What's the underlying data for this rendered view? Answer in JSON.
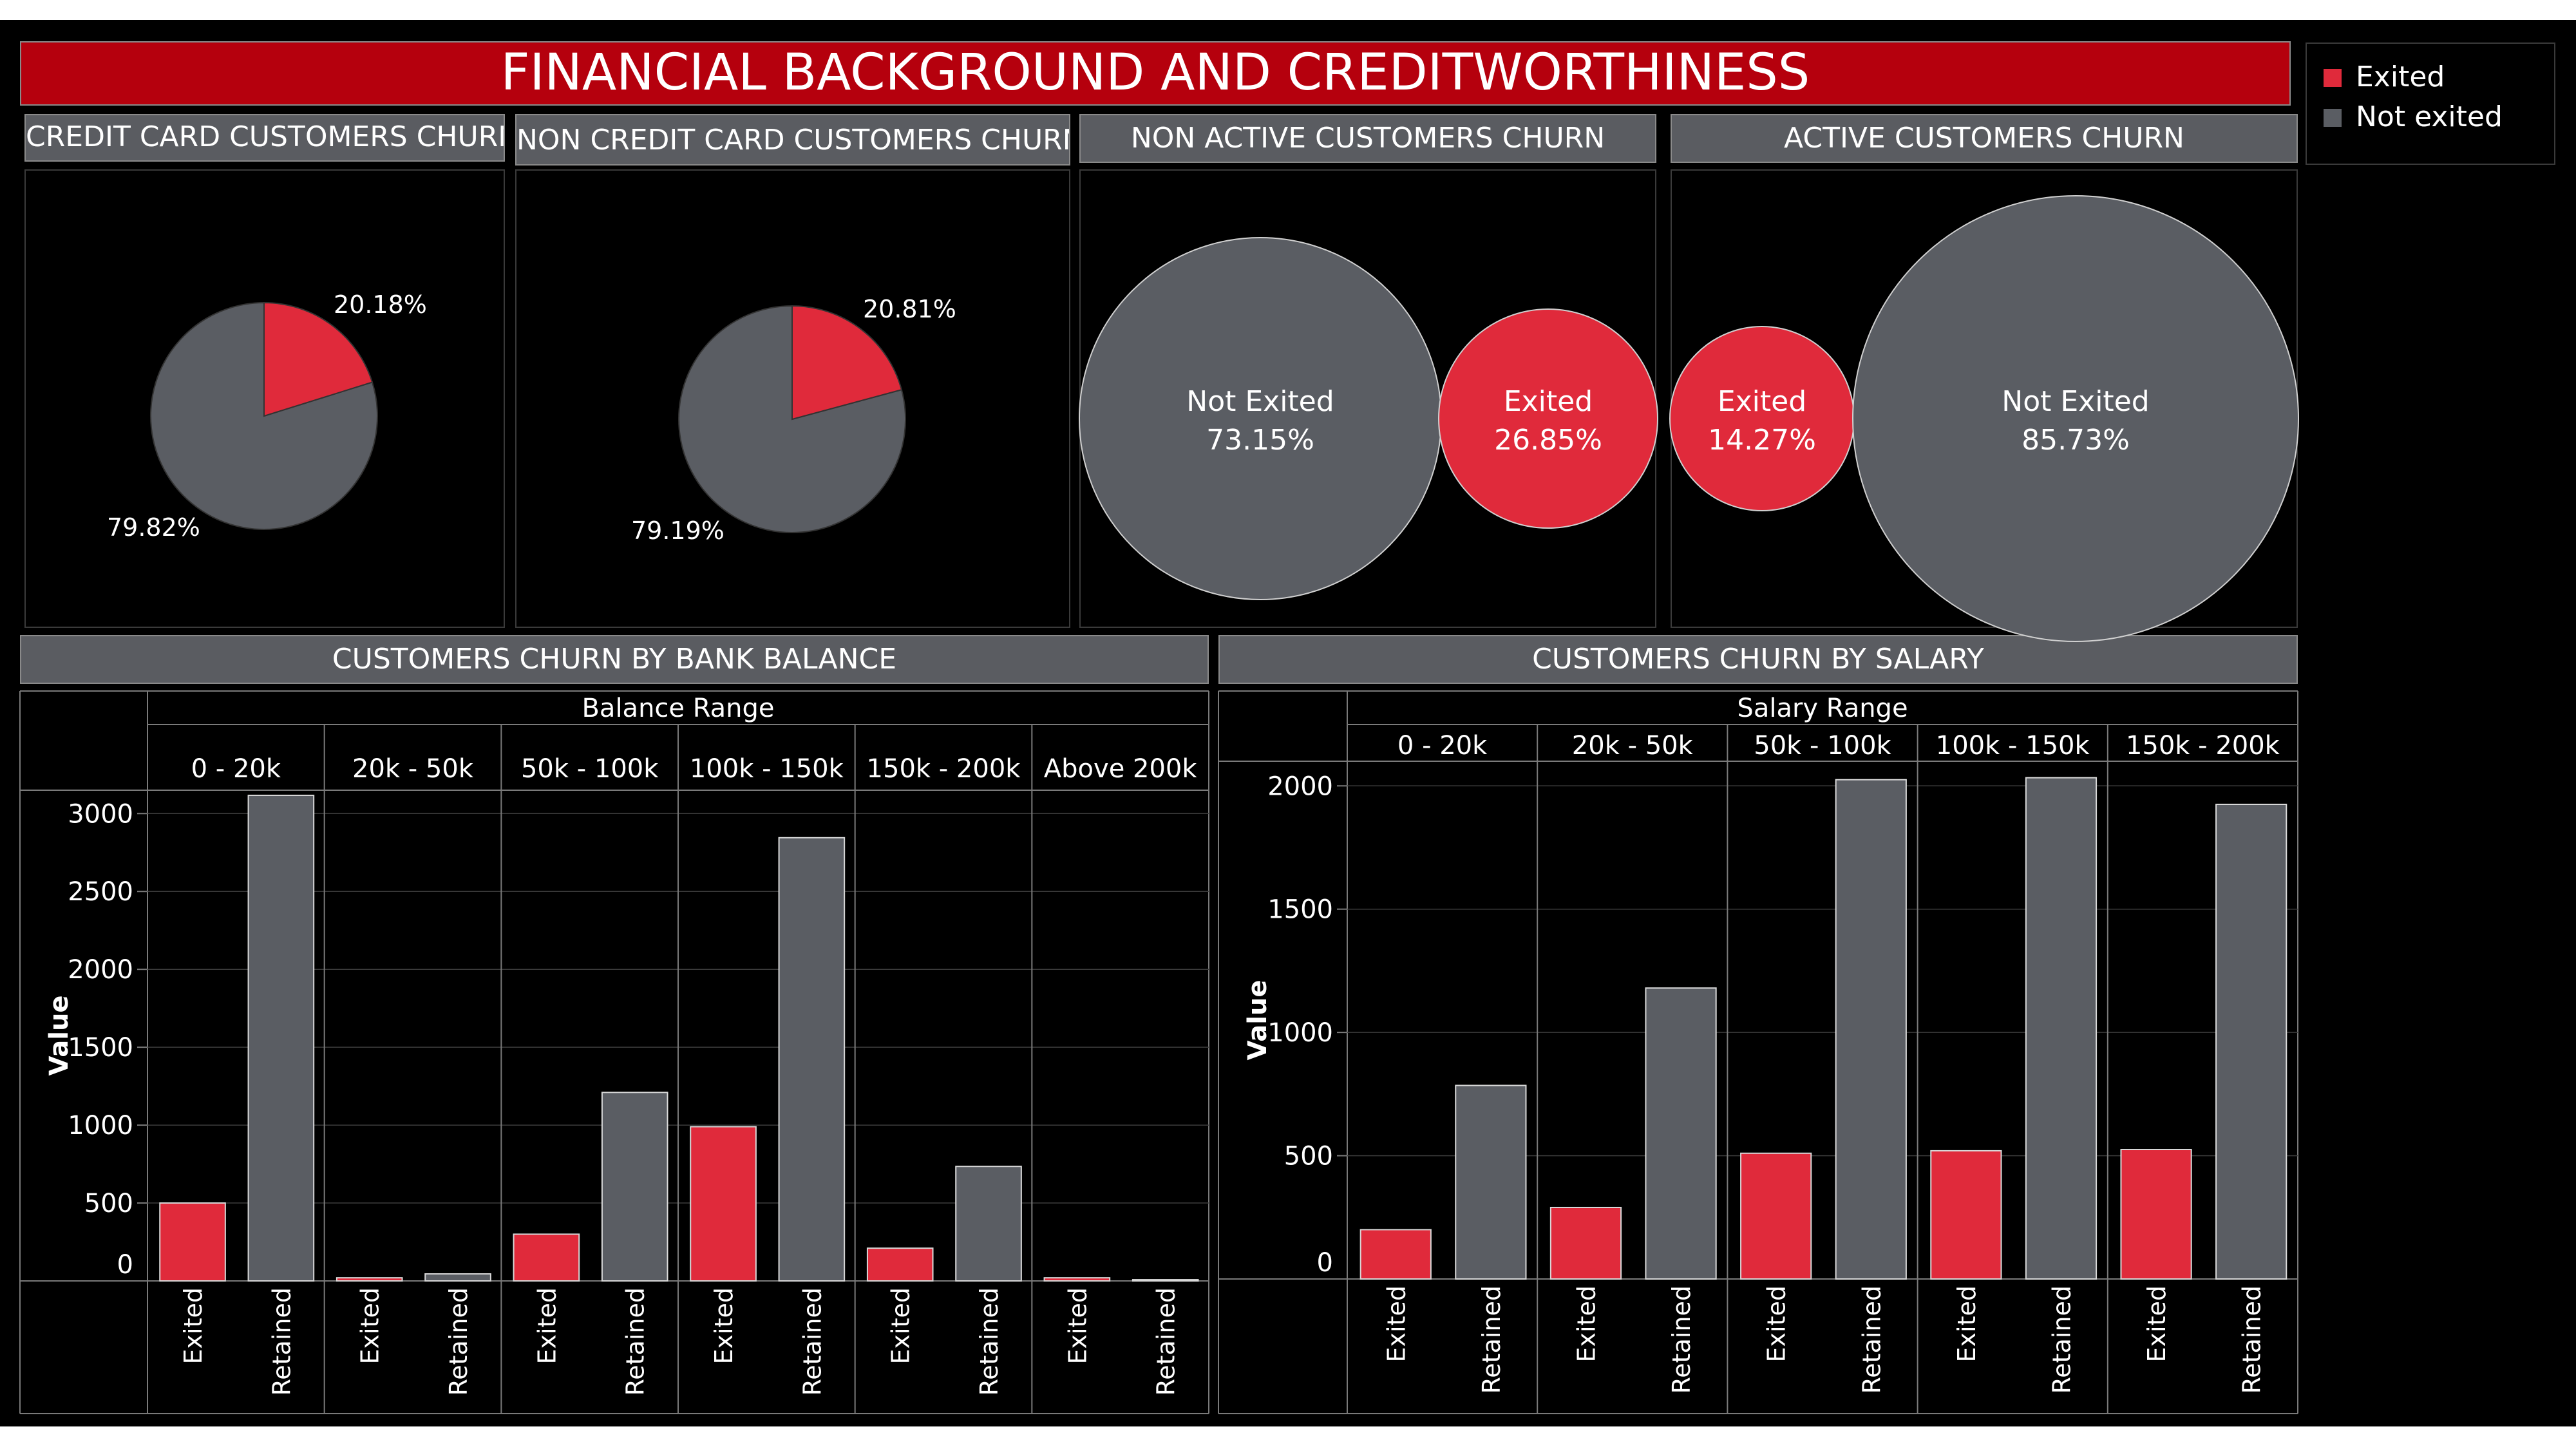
{
  "title": "FINANCIAL BACKGROUND AND CREDITWORTHINESS",
  "colors": {
    "exited": "#e02a3b",
    "retained": "#5a5d63",
    "background": "#000000",
    "header": "#b5000d",
    "title_bar": "#5a5c61"
  },
  "legend": [
    {
      "label": "Exited",
      "color": "#e02a3b"
    },
    {
      "label": "Not exited",
      "color": "#5a5d63"
    }
  ],
  "panels": {
    "credit_card": {
      "title": "CREDIT CARD CUSTOMERS CHURN"
    },
    "non_credit_card": {
      "title": "NON CREDIT CARD CUSTOMERS CHURN"
    },
    "non_active": {
      "title": "NON ACTIVE CUSTOMERS CHURN"
    },
    "active": {
      "title": "ACTIVE CUSTOMERS CHURN"
    },
    "balance": {
      "title": "CUSTOMERS CHURN BY BANK BALANCE"
    },
    "salary": {
      "title": "CUSTOMERS CHURN BY SALARY"
    }
  },
  "chart_data": [
    {
      "type": "pie",
      "title": "CREDIT CARD CUSTOMERS CHURN",
      "slices": [
        {
          "name": "Exited",
          "value": 20.18,
          "label": "20.18%"
        },
        {
          "name": "Not exited",
          "value": 79.82,
          "label": "79.82%"
        }
      ]
    },
    {
      "type": "pie",
      "title": "NON CREDIT CARD CUSTOMERS CHURN",
      "slices": [
        {
          "name": "Exited",
          "value": 20.81,
          "label": "20.81%"
        },
        {
          "name": "Not exited",
          "value": 79.19,
          "label": "79.19%"
        }
      ]
    },
    {
      "type": "bubble",
      "title": "NON ACTIVE CUSTOMERS CHURN",
      "bubbles": [
        {
          "name": "Not Exited",
          "value": 73.15,
          "label": "73.15%"
        },
        {
          "name": "Exited",
          "value": 26.85,
          "label": "26.85%"
        }
      ]
    },
    {
      "type": "bubble",
      "title": "ACTIVE CUSTOMERS CHURN",
      "bubbles": [
        {
          "name": "Exited",
          "value": 14.27,
          "label": "14.27%"
        },
        {
          "name": "Not Exited",
          "value": 85.73,
          "label": "85.73%"
        }
      ]
    },
    {
      "type": "bar",
      "title": "CUSTOMERS CHURN BY BANK BALANCE",
      "group_header": "Balance Range",
      "ylabel": "Value",
      "ylim": [
        0,
        3150
      ],
      "yticks": [
        0,
        500,
        1000,
        1500,
        2000,
        2500,
        3000
      ],
      "groups": [
        "0 - 20k",
        "20k - 50k",
        "50k - 100k",
        "100k - 150k",
        "150k - 200k",
        "Above 200k"
      ],
      "bar_labels": [
        "Exited",
        "Retained"
      ],
      "series": [
        {
          "name": "Exited",
          "values": [
            500,
            20,
            300,
            990,
            210,
            20
          ]
        },
        {
          "name": "Retained",
          "values": [
            3117,
            45,
            1210,
            2845,
            735,
            8
          ]
        }
      ]
    },
    {
      "type": "bar",
      "title": "CUSTOMERS CHURN BY SALARY",
      "group_header": "Salary Range",
      "ylabel": "Value",
      "ylim": [
        0,
        2100
      ],
      "yticks": [
        0,
        500,
        1000,
        1500,
        2000
      ],
      "groups": [
        "0 - 20k",
        "20k - 50k",
        "50k - 100k",
        "100k - 150k",
        "150k - 200k"
      ],
      "bar_labels": [
        "Exited",
        "Retained"
      ],
      "series": [
        {
          "name": "Exited",
          "values": [
            200,
            290,
            510,
            520,
            525
          ]
        },
        {
          "name": "Retained",
          "values": [
            785,
            1180,
            2025,
            2033,
            1925
          ]
        }
      ]
    }
  ]
}
